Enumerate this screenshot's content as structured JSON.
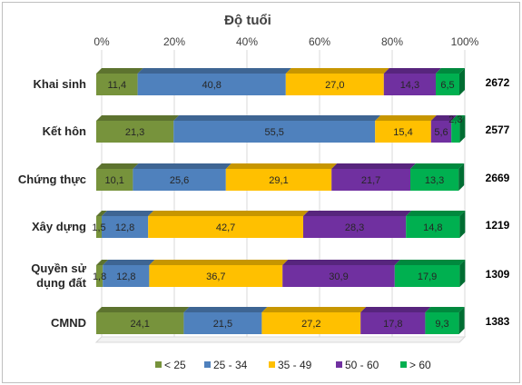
{
  "chart_data": {
    "type": "bar",
    "orientation": "horizontal",
    "stacked": "percent",
    "title": "Độ tuổi",
    "xlim": [
      0,
      100
    ],
    "x_ticks": [
      "0%",
      "20%",
      "40%",
      "60%",
      "80%",
      "100%"
    ],
    "categories": [
      "Khai sinh",
      "Kết hôn",
      "Chứng thực",
      "Xây dựng",
      "Quyền sử dụng đất",
      "CMND"
    ],
    "category_lines": [
      [
        "Khai sinh"
      ],
      [
        "Kết hôn"
      ],
      [
        "Chứng thực"
      ],
      [
        "Xây dựng"
      ],
      [
        "Quyền sử",
        "dụng đất"
      ],
      [
        "CMND"
      ]
    ],
    "totals": [
      "2672",
      "2577",
      "2669",
      "1219",
      "1309",
      "1383"
    ],
    "series": [
      {
        "name": "< 25",
        "color": "#77933c",
        "values": [
          11.4,
          21.3,
          10.1,
          1.5,
          1.8,
          24.1
        ],
        "labels": [
          "11,4",
          "21,3",
          "10,1",
          "1,5",
          "1,8",
          "24,1"
        ]
      },
      {
        "name": "25 - 34",
        "color": "#4f81bd",
        "values": [
          40.8,
          55.5,
          25.6,
          12.8,
          12.8,
          21.5
        ],
        "labels": [
          "40,8",
          "55,5",
          "25,6",
          "12,8",
          "12,8",
          "21,5"
        ]
      },
      {
        "name": "35 - 49",
        "color": "#ffc000",
        "values": [
          27.0,
          15.4,
          29.1,
          42.7,
          36.7,
          27.2
        ],
        "labels": [
          "27,0",
          "15,4",
          "29,1",
          "42,7",
          "36,7",
          "27,2"
        ]
      },
      {
        "name": "50 - 60",
        "color": "#7030a0",
        "values": [
          14.3,
          5.6,
          21.7,
          28.3,
          30.9,
          17.8
        ],
        "labels": [
          "14,3",
          "5,6",
          "21,7",
          "28,3",
          "30,9",
          "17,8"
        ]
      },
      {
        "name": "> 60",
        "color": "#00b050",
        "values": [
          6.5,
          2.3,
          13.3,
          14.8,
          17.9,
          9.3
        ],
        "labels": [
          "6,5",
          "2,3",
          "13,3",
          "14,8",
          "17,9",
          "9,3"
        ]
      }
    ],
    "grid": true,
    "legend": "bottom"
  }
}
